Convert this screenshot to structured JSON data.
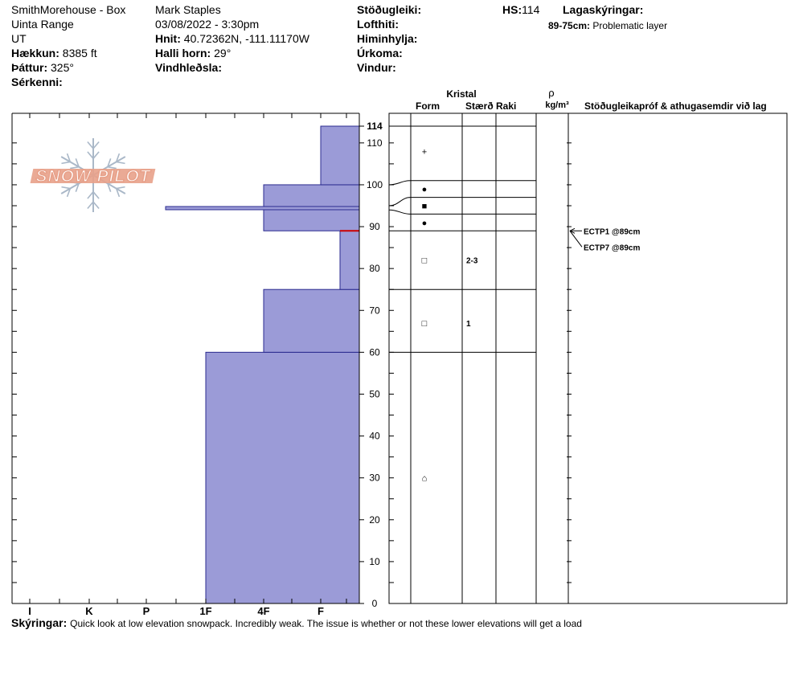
{
  "header": {
    "location": "SmithMorehouse - Box",
    "range": "Uinta Range",
    "state": "UT",
    "elevation_label": "Hækkun:",
    "elevation_value": "8385 ft",
    "aspect_label": "Þáttur:",
    "aspect_value": "325°",
    "features_label": "Sérkenni:",
    "observer": "Mark Staples",
    "datetime": "03/08/2022 - 3:30pm",
    "coords_label": "Hnit:",
    "coords_value": "40.72362N, -111.11170W",
    "slope_label": "Halli horn:",
    "slope_value": "29°",
    "wind_loading_label": "Vindhleðsla:",
    "stability_label": "Stöðugleiki:",
    "air_temp_label": "Lofthiti:",
    "sky_label": "Himinhylja:",
    "precip_label": "Úrkoma:",
    "wind_label": "Vindur:",
    "hs_label": "HS:",
    "hs_value": "114",
    "legend_label": "Lagaskýringar:",
    "legend_range": "89-75cm:",
    "legend_text": "Problematic layer"
  },
  "footer": {
    "notes_label": "Skýringar:",
    "notes_text": "Quick look at low elevation snowpack. Incredibly weak. The issue is whether or not these lower elevations will get a load"
  },
  "colors": {
    "hardness_fill": "#9b9bd7",
    "hardness_stroke": "#2b2b8f",
    "problem_layer": "#cc0000",
    "logo": "#e8a18a",
    "flake": "#aab8c8"
  },
  "logo_text": "SNOW PILOT",
  "chart_data": {
    "type": "snow_profile",
    "y_axis": {
      "range": [
        0,
        114
      ],
      "ticks": [
        0,
        10,
        20,
        30,
        40,
        50,
        60,
        70,
        80,
        90,
        100,
        110,
        114
      ]
    },
    "hardness_scale": [
      "I",
      "K",
      "P",
      "1F",
      "4F",
      "F"
    ],
    "hardness_layers": [
      {
        "bottom": 0,
        "top": 60,
        "hardness": "1F"
      },
      {
        "bottom": 60,
        "top": 75,
        "hardness": "4F"
      },
      {
        "bottom": 75,
        "top": 89,
        "hardness": "F-"
      },
      {
        "bottom": 89,
        "top": 100,
        "hardness": "4F"
      },
      {
        "bottom": 94,
        "top": 95,
        "hardness": "P-"
      },
      {
        "bottom": 100,
        "top": 114,
        "hardness": "F"
      }
    ],
    "problem_layer_cm": 89,
    "column_headers": {
      "crystal": "Kristal",
      "form": "Form",
      "size": "Stærð",
      "moisture": "Raki",
      "rho": "ρ",
      "density_unit": "kg/m³",
      "tests": "Stöðugleikapróf & athugasemdir við lag"
    },
    "layer_boundaries": [
      114,
      101,
      97,
      93,
      89,
      75,
      60
    ],
    "grain_forms": [
      {
        "height": 108,
        "symbol": "+"
      },
      {
        "height": 99,
        "symbol": "●"
      },
      {
        "height": 95,
        "symbol": "■"
      },
      {
        "height": 91,
        "symbol": "●"
      },
      {
        "height": 82,
        "symbol": "□",
        "size": "2-3"
      },
      {
        "height": 67,
        "symbol": "□",
        "size": "1"
      },
      {
        "height": 30,
        "symbol": "⌂"
      }
    ],
    "stability_tests": [
      {
        "label": "ECTP1 @89cm",
        "depth": 89
      },
      {
        "label": "ECTP7 @89cm",
        "depth": 89
      }
    ]
  }
}
